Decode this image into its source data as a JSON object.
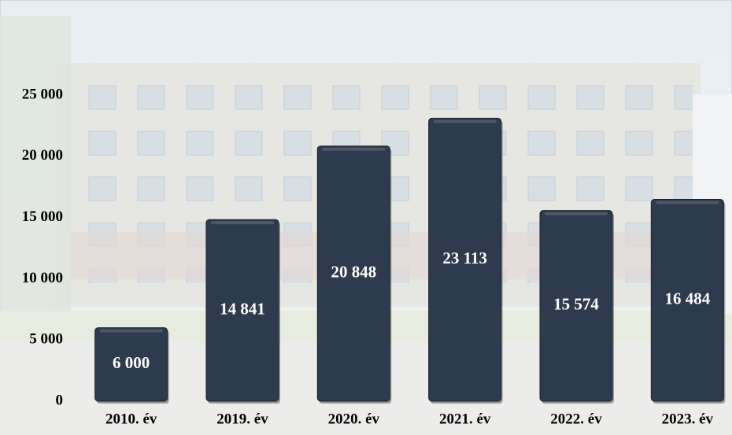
{
  "chart_data": {
    "type": "bar",
    "categories": [
      "2010. év",
      "2019. év",
      "2020. év",
      "2021. év",
      "2022. év",
      "2023. év"
    ],
    "values": [
      6000,
      14841,
      20848,
      23113,
      15574,
      16484
    ],
    "value_labels": [
      "6 000",
      "14 841",
      "20 848",
      "23 113",
      "15 574",
      "16 484"
    ],
    "color": "#2e3a4d",
    "ylim": [
      0,
      25000
    ],
    "yticks": [
      0,
      {
        "value": 5000,
        "label": "5 000"
      },
      {
        "value": 10000,
        "label": "10 000"
      },
      {
        "value": 15000,
        "label": "15 000"
      },
      {
        "value": 20000,
        "label": "20 000"
      },
      {
        "value": 25000,
        "label": "25 000"
      }
    ],
    "grid": false
  }
}
